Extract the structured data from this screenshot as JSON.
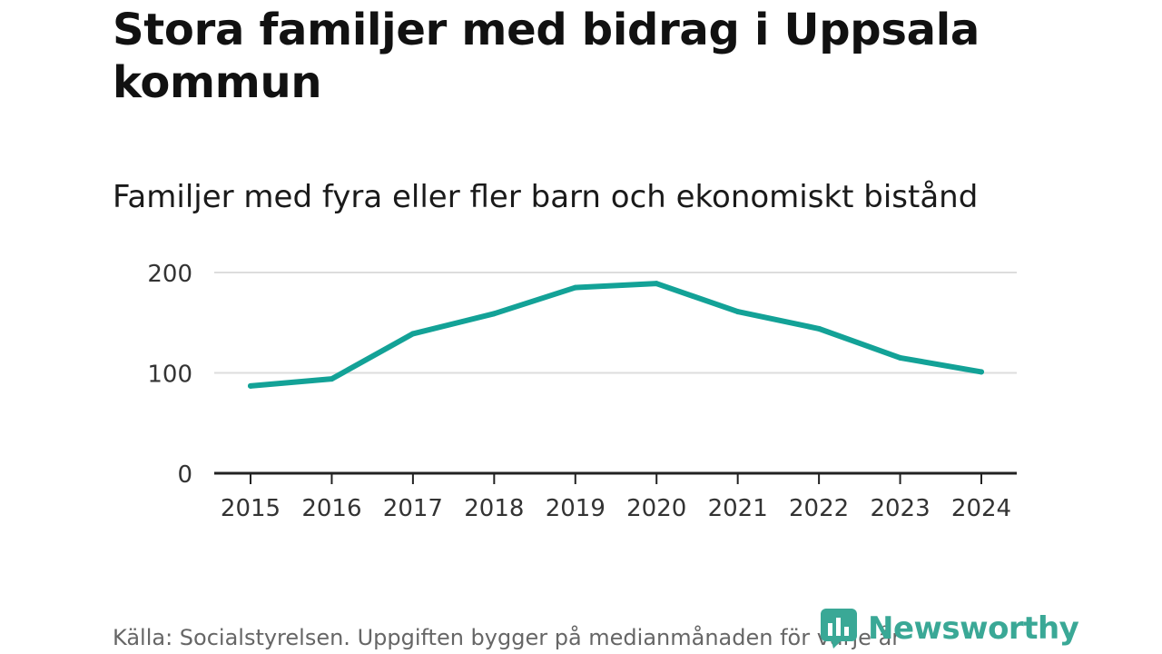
{
  "header": {
    "title": "Stora familjer med bidrag i Uppsala kommun",
    "subtitle": "Familjer med fyra eller fler barn och ekonomiskt bistånd"
  },
  "footer": {
    "source": "Källa: Socialstyrelsen. Uppgiften bygger på medianmånaden för varje år",
    "brand": "Newsworthy"
  },
  "colors": {
    "line": "#13a297",
    "grid": "#dddddd",
    "axis": "#222222",
    "brand": "#3aa896"
  },
  "chart_data": {
    "type": "line",
    "title": "Stora familjer med bidrag i Uppsala kommun",
    "subtitle": "Familjer med fyra eller fler barn och ekonomiskt bistånd",
    "xlabel": "",
    "ylabel": "",
    "x": [
      "2015",
      "2016",
      "2017",
      "2018",
      "2019",
      "2020",
      "2021",
      "2022",
      "2023",
      "2024"
    ],
    "series": [
      {
        "values": [
          87,
          94,
          139,
          159,
          185,
          189,
          161,
          144,
          115,
          101
        ]
      }
    ],
    "yticks": [
      "0",
      "100",
      "200"
    ],
    "ytick_values": [
      0,
      100,
      200
    ],
    "ylim": [
      0,
      200
    ],
    "grid": true,
    "legend": "none"
  }
}
